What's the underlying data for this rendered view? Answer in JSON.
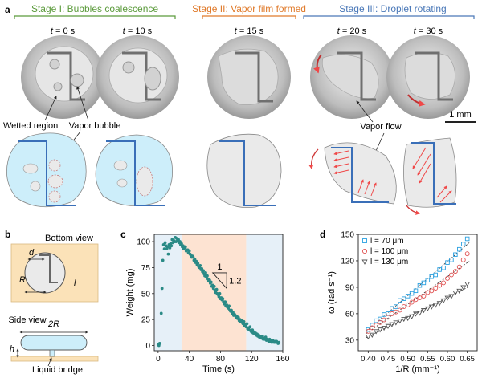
{
  "panel_labels": {
    "a": "a",
    "b": "b",
    "c": "c",
    "d": "d"
  },
  "stages": [
    {
      "label": "Stage I: Bubbles coalescence",
      "color": "#5a9a3a"
    },
    {
      "label": "Stage II: Vapor film formed",
      "color": "#e07a2a"
    },
    {
      "label": "Stage III: Droplet rotating",
      "color": "#4a78b8"
    }
  ],
  "times": [
    {
      "var": "t",
      "value": " = 0 s"
    },
    {
      "var": "t",
      "value": " = 10 s"
    },
    {
      "var": "t",
      "value": " = 15 s"
    },
    {
      "var": "t",
      "value": " = 20 s"
    },
    {
      "var": "t",
      "value": " = 30 s"
    }
  ],
  "annotations": {
    "wetted_region": "Wetted region",
    "vapor_bubble": "Vapor bubble",
    "vapor_flow": "Vapor flow",
    "scale_bar": "1 mm"
  },
  "schematic_b": {
    "bottom_view": "Bottom view",
    "side_view": "Side view",
    "d": "d",
    "R": "R",
    "l": "l",
    "twoR": "2R",
    "h": "h",
    "liquid_bridge": "Liquid bridge"
  },
  "colors": {
    "wetted_fill": "#cdeefa",
    "electrode": "#3a6fb8",
    "flow_arrow": "#f04848",
    "region1": "#e6f0f8",
    "region2": "#fde3d2",
    "region3": "#e6f0f8",
    "marker_c": "#2a8a86",
    "series_d": [
      "#2aa0e0",
      "#e05050",
      "#555555"
    ],
    "pad": "#fbe2b8"
  },
  "chart_data": [
    {
      "type": "scatter",
      "panel": "c",
      "xlabel": "Time (s)",
      "ylabel": "Weight (mg)",
      "xlim": [
        -5,
        160
      ],
      "ylim": [
        -5,
        107
      ],
      "xticks": [
        "0",
        "40",
        "80",
        "120",
        "160"
      ],
      "yticks": [
        "0",
        "25",
        "50",
        "75",
        "100"
      ],
      "regions": [
        [
          -5,
          30
        ],
        [
          30,
          113
        ],
        [
          113,
          160
        ]
      ],
      "slope_label": {
        "rise": "1",
        "run": "1.2"
      },
      "x": [
        0,
        1,
        2,
        4,
        5,
        6,
        7,
        8,
        9,
        10,
        11,
        12,
        13,
        14,
        15,
        16,
        17,
        18,
        19,
        20,
        21,
        22,
        23,
        24,
        25,
        26,
        27,
        28,
        29,
        30,
        31,
        32,
        33,
        34,
        35,
        36,
        37,
        38,
        39,
        40,
        41,
        42,
        43,
        44,
        45,
        46,
        47,
        48,
        49,
        50,
        51,
        52,
        53,
        54,
        55,
        56,
        57,
        58,
        59,
        60,
        61,
        62,
        63,
        64,
        65,
        66,
        67,
        68,
        69,
        70,
        71,
        72,
        73,
        74,
        75,
        76,
        77,
        78,
        79,
        80,
        81,
        82,
        83,
        84,
        85,
        86,
        87,
        88,
        89,
        90,
        91,
        92,
        93,
        94,
        95,
        96,
        97,
        98,
        99,
        100,
        101,
        102,
        103,
        104,
        105,
        106,
        107,
        108,
        109,
        110,
        111,
        112,
        113,
        114,
        115,
        116,
        117,
        118,
        119,
        120,
        121,
        122,
        123,
        124,
        125,
        126,
        127,
        128,
        129,
        130,
        131,
        132,
        133,
        134,
        135,
        136,
        137,
        138,
        139,
        140,
        141,
        142,
        143,
        144,
        145,
        146,
        147,
        148,
        149,
        150,
        151,
        152,
        153,
        154,
        155
      ],
      "y": [
        1,
        0,
        2,
        31,
        55,
        82,
        97,
        93,
        99,
        96,
        93,
        95,
        88,
        97,
        94,
        98,
        96,
        102,
        99,
        101,
        100,
        104,
        100,
        103,
        101,
        102,
        99,
        100,
        97,
        98,
        95,
        96,
        93,
        94,
        95,
        91,
        92,
        92,
        89,
        91,
        88,
        87,
        85,
        86,
        85,
        82,
        83,
        80,
        81,
        78,
        79,
        76,
        75,
        77,
        73,
        74,
        71,
        72,
        69,
        67,
        70,
        66,
        67,
        64,
        62,
        63,
        60,
        61,
        57,
        58,
        55,
        57,
        53,
        51,
        54,
        50,
        49,
        47,
        50,
        45,
        46,
        44,
        45,
        42,
        40,
        42,
        38,
        39,
        37,
        36,
        38,
        34,
        33,
        34,
        31,
        32,
        29,
        30,
        29,
        27,
        28,
        26,
        27,
        24,
        25,
        23,
        24,
        22,
        21,
        23,
        19,
        20,
        18,
        21,
        16,
        17,
        15,
        18,
        14,
        13,
        15,
        12,
        13,
        11,
        12,
        10,
        11,
        9,
        10,
        8,
        9,
        8,
        7,
        9,
        6,
        7,
        6,
        8,
        5,
        6,
        5,
        4,
        6,
        4,
        5,
        3,
        5,
        4,
        3,
        4,
        3,
        4,
        3,
        2,
        3
      ]
    },
    {
      "type": "scatter",
      "panel": "d",
      "xlabel": "1/R (mm⁻¹)",
      "ylabel": "ω (rad s⁻¹)",
      "xlim": [
        0.375,
        0.675
      ],
      "ylim": [
        18,
        150
      ],
      "xticks": [
        "0.40",
        "0.45",
        "0.50",
        "0.55",
        "0.60",
        "0.65"
      ],
      "yticks": [
        "30",
        "60",
        "90",
        "120",
        "150"
      ],
      "series": [
        {
          "name": "l = 70 μm",
          "marker": "square",
          "x": [
            0.4,
            0.41,
            0.42,
            0.43,
            0.44,
            0.45,
            0.46,
            0.47,
            0.48,
            0.49,
            0.5,
            0.51,
            0.52,
            0.53,
            0.54,
            0.55,
            0.56,
            0.57,
            0.58,
            0.59,
            0.6,
            0.61,
            0.62,
            0.63,
            0.64,
            0.65
          ],
          "y": [
            42,
            47,
            52,
            54,
            59,
            60,
            66,
            68,
            75,
            77,
            80,
            83,
            86,
            92,
            95,
            98,
            102,
            104,
            110,
            112,
            118,
            121,
            127,
            133,
            139,
            145
          ]
        },
        {
          "name": "l = 100 μm",
          "marker": "circle",
          "x": [
            0.4,
            0.41,
            0.42,
            0.43,
            0.44,
            0.45,
            0.46,
            0.47,
            0.48,
            0.49,
            0.5,
            0.51,
            0.52,
            0.53,
            0.54,
            0.55,
            0.56,
            0.57,
            0.58,
            0.59,
            0.6,
            0.61,
            0.62,
            0.63,
            0.64,
            0.65
          ],
          "y": [
            40,
            44,
            47,
            50,
            53,
            56,
            60,
            62,
            64,
            68,
            70,
            73,
            76,
            78,
            80,
            84,
            86,
            89,
            92,
            95,
            100,
            104,
            108,
            113,
            121,
            128
          ]
        },
        {
          "name": "l = 130 μm",
          "marker": "triangle",
          "x": [
            0.4,
            0.41,
            0.42,
            0.43,
            0.44,
            0.45,
            0.46,
            0.47,
            0.48,
            0.49,
            0.5,
            0.51,
            0.52,
            0.53,
            0.54,
            0.55,
            0.56,
            0.57,
            0.58,
            0.59,
            0.6,
            0.61,
            0.62,
            0.63,
            0.64,
            0.65
          ],
          "y": [
            34,
            36,
            40,
            42,
            44,
            46,
            48,
            50,
            52,
            54,
            55,
            57,
            60,
            61,
            64,
            66,
            68,
            70,
            72,
            75,
            78,
            80,
            84,
            86,
            90,
            94
          ]
        }
      ]
    }
  ]
}
